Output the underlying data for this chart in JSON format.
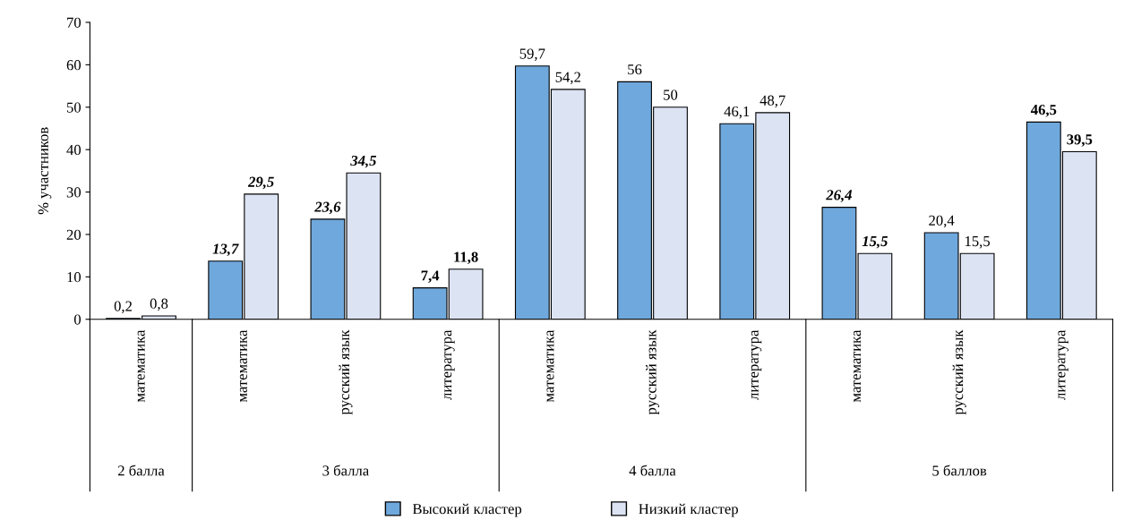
{
  "chart_data": {
    "type": "bar",
    "ylabel": "% участников",
    "categories": [
      "математика",
      "математика",
      "русский язык",
      "литература",
      "математика",
      "русский язык",
      "литература",
      "математика",
      "русский язык",
      "литература"
    ],
    "series": [
      {
        "name": "Высокий кластер",
        "color": "#6fa8dc",
        "values": [
          0.2,
          13.7,
          23.6,
          7.4,
          59.7,
          56,
          46.1,
          26.4,
          20.4,
          46.5
        ],
        "value_labels": [
          "0,2",
          "13,7",
          "23,6",
          "7,4",
          "59,7",
          "56",
          "46,1",
          "26,4",
          "20,4",
          "46,5"
        ]
      },
      {
        "name": "Низкий кластер",
        "color": "#dce3f3",
        "values": [
          0.8,
          29.5,
          34.5,
          11.8,
          54.2,
          50,
          48.7,
          15.5,
          15.5,
          39.5
        ],
        "value_labels": [
          "0,8",
          "29,5",
          "34,5",
          "11,8",
          "54,2",
          "50",
          "48,7",
          "15,5",
          "15,5",
          "39,5"
        ]
      }
    ],
    "annotations": [
      "2 балла",
      "3 балла",
      "4 балла",
      "5 баллов"
    ],
    "ylim": [
      0,
      70
    ],
    "yticks": [
      0,
      10,
      20,
      30,
      40,
      50,
      60,
      70
    ],
    "grid": false,
    "legend": "bottom"
  }
}
